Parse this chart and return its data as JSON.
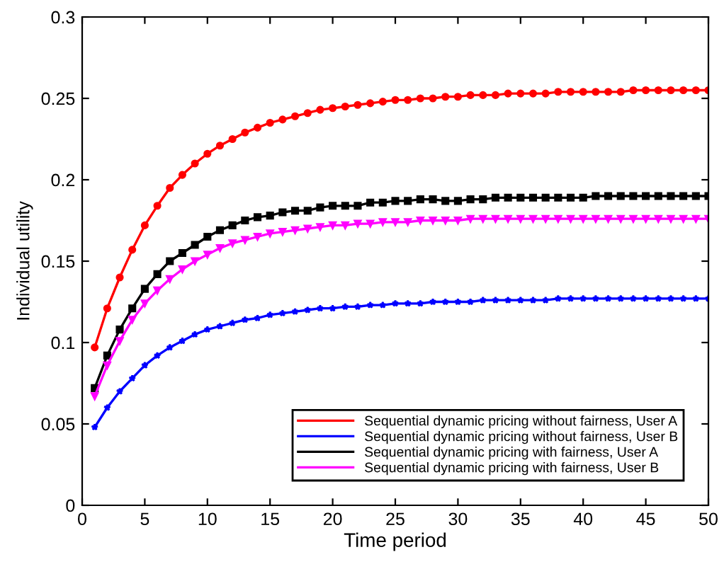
{
  "chart_data": {
    "type": "line",
    "xlabel": "Time period",
    "ylabel": "Individual utility",
    "x": [
      1,
      2,
      3,
      4,
      5,
      6,
      7,
      8,
      9,
      10,
      11,
      12,
      13,
      14,
      15,
      16,
      17,
      18,
      19,
      20,
      21,
      22,
      23,
      24,
      25,
      26,
      27,
      28,
      29,
      30,
      31,
      32,
      33,
      34,
      35,
      36,
      37,
      38,
      39,
      40,
      41,
      42,
      43,
      44,
      45,
      46,
      47,
      48,
      49,
      50
    ],
    "xlim": [
      0,
      50
    ],
    "xticks": [
      0,
      5,
      10,
      15,
      20,
      25,
      30,
      35,
      40,
      45,
      50
    ],
    "ylim": [
      0,
      0.3
    ],
    "yticks": [
      0,
      0.05,
      0.1,
      0.15,
      0.2,
      0.25,
      0.3
    ],
    "grid": false,
    "legend": "bottom right",
    "line_style": "solid",
    "series": [
      {
        "name": "Sequential dynamic pricing without fairness, User A",
        "color": "#ff0000",
        "marker": "circle",
        "values": [
          0.097,
          0.121,
          0.14,
          0.157,
          0.172,
          0.184,
          0.195,
          0.203,
          0.21,
          0.216,
          0.221,
          0.225,
          0.229,
          0.232,
          0.235,
          0.237,
          0.239,
          0.241,
          0.243,
          0.244,
          0.245,
          0.246,
          0.247,
          0.248,
          0.249,
          0.249,
          0.25,
          0.25,
          0.251,
          0.251,
          0.252,
          0.252,
          0.252,
          0.253,
          0.253,
          0.253,
          0.253,
          0.254,
          0.254,
          0.254,
          0.254,
          0.254,
          0.254,
          0.255,
          0.255,
          0.255,
          0.255,
          0.255,
          0.255,
          0.255
        ]
      },
      {
        "name": "Sequential dynamic pricing without fairness, User B",
        "color": "#0000ff",
        "marker": "star",
        "values": [
          0.048,
          0.06,
          0.07,
          0.078,
          0.086,
          0.092,
          0.097,
          0.101,
          0.105,
          0.108,
          0.11,
          0.112,
          0.114,
          0.115,
          0.117,
          0.118,
          0.119,
          0.12,
          0.121,
          0.121,
          0.122,
          0.122,
          0.123,
          0.123,
          0.124,
          0.124,
          0.124,
          0.125,
          0.125,
          0.125,
          0.125,
          0.126,
          0.126,
          0.126,
          0.126,
          0.126,
          0.126,
          0.127,
          0.127,
          0.127,
          0.127,
          0.127,
          0.127,
          0.127,
          0.127,
          0.127,
          0.127,
          0.127,
          0.127,
          0.127
        ]
      },
      {
        "name": "Sequential dynamic pricing with fairness, User A",
        "color": "#000000",
        "marker": "square",
        "values": [
          0.072,
          0.092,
          0.108,
          0.121,
          0.133,
          0.142,
          0.15,
          0.155,
          0.16,
          0.165,
          0.169,
          0.172,
          0.175,
          0.177,
          0.178,
          0.18,
          0.181,
          0.181,
          0.183,
          0.184,
          0.184,
          0.184,
          0.186,
          0.186,
          0.187,
          0.187,
          0.188,
          0.188,
          0.187,
          0.187,
          0.188,
          0.188,
          0.189,
          0.189,
          0.189,
          0.189,
          0.189,
          0.189,
          0.189,
          0.189,
          0.19,
          0.19,
          0.19,
          0.19,
          0.19,
          0.19,
          0.19,
          0.19,
          0.19,
          0.19
        ]
      },
      {
        "name": "Sequential dynamic pricing with fairness, User B",
        "color": "#ff00ff",
        "marker": "triangle",
        "values": [
          0.067,
          0.086,
          0.101,
          0.114,
          0.124,
          0.132,
          0.139,
          0.145,
          0.15,
          0.154,
          0.158,
          0.161,
          0.163,
          0.165,
          0.167,
          0.168,
          0.169,
          0.17,
          0.171,
          0.172,
          0.172,
          0.173,
          0.173,
          0.174,
          0.174,
          0.174,
          0.175,
          0.175,
          0.175,
          0.175,
          0.176,
          0.176,
          0.176,
          0.176,
          0.176,
          0.176,
          0.176,
          0.176,
          0.176,
          0.176,
          0.176,
          0.176,
          0.176,
          0.176,
          0.176,
          0.176,
          0.176,
          0.176,
          0.176,
          0.176
        ]
      }
    ]
  }
}
